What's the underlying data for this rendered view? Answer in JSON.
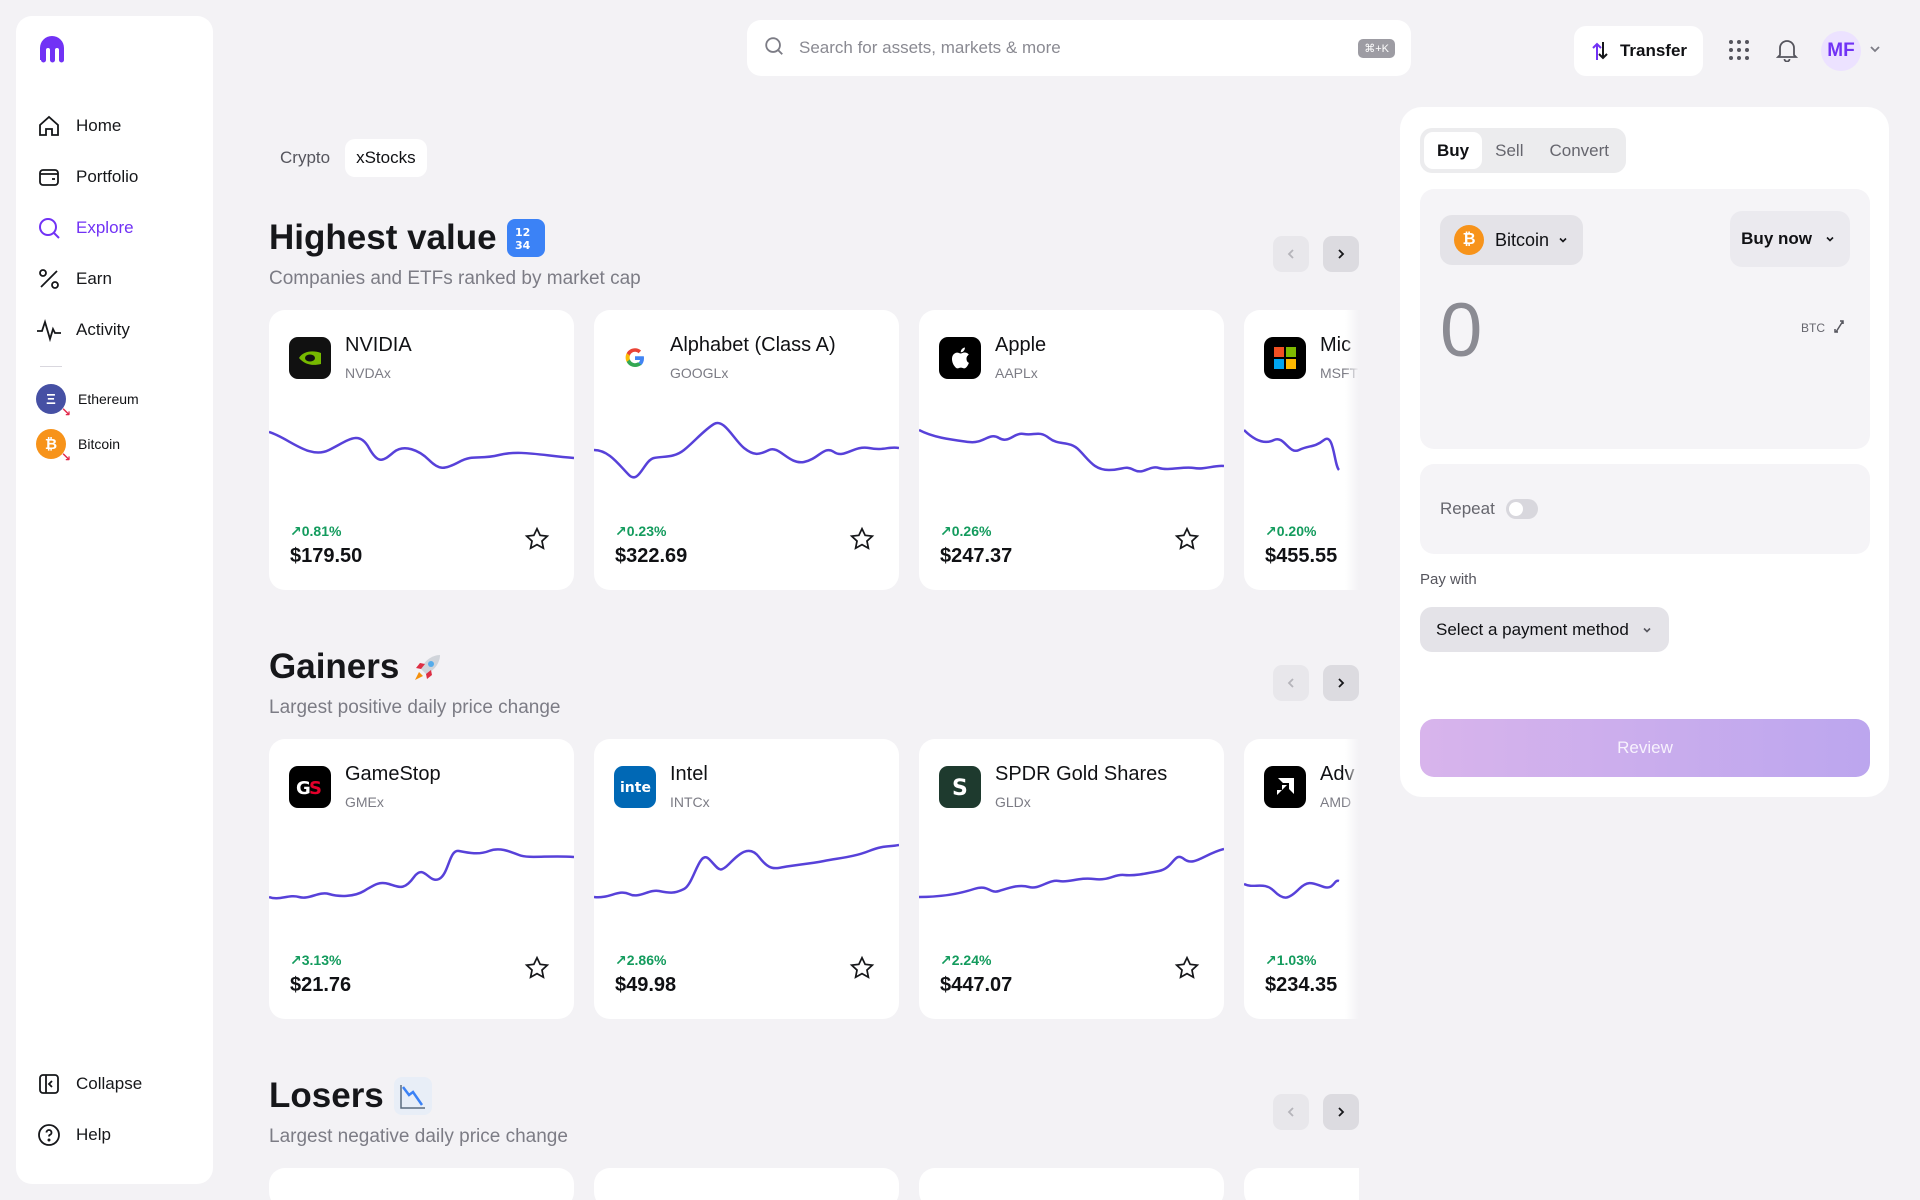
{
  "sidebar": {
    "nav": [
      {
        "label": "Home",
        "icon": "home-icon"
      },
      {
        "label": "Portfolio",
        "icon": "wallet-icon"
      },
      {
        "label": "Explore",
        "icon": "search-icon"
      },
      {
        "label": "Earn",
        "icon": "percent-icon"
      },
      {
        "label": "Activity",
        "icon": "activity-icon"
      }
    ],
    "recent": [
      {
        "label": "Ethereum",
        "symbol": "Ξ",
        "color": "#4650a4"
      },
      {
        "label": "Bitcoin",
        "symbol": "₿",
        "color": "#f7931a"
      }
    ],
    "collapse_label": "Collapse",
    "help_label": "Help",
    "accent": "#7132f5"
  },
  "topbar": {
    "search_placeholder": "Search for assets, markets & more",
    "shortcut": "⌘+K",
    "transfer_label": "Transfer",
    "avatar_initials": "MF"
  },
  "tabs": [
    {
      "label": "Crypto",
      "active": false
    },
    {
      "label": "xStocks",
      "active": true
    }
  ],
  "sections": [
    {
      "title": "Highest value",
      "emoji": "1234",
      "subtitle": "Companies and ETFs ranked by market cap",
      "cards": [
        {
          "name": "NVIDIA",
          "ticker": "NVDAx",
          "change": "0.81%",
          "price": "$179.50",
          "logo": "nvidia-logo"
        },
        {
          "name": "Alphabet (Class A)",
          "ticker": "GOOGLx",
          "change": "0.23%",
          "price": "$322.69",
          "logo": "google-logo"
        },
        {
          "name": "Apple",
          "ticker": "AAPLx",
          "change": "0.26%",
          "price": "$247.37",
          "logo": "apple-logo"
        },
        {
          "name": "Mic",
          "ticker": "MSFT",
          "change": "0.20%",
          "price": "$455.55",
          "logo": "microsoft-logo"
        }
      ]
    },
    {
      "title": "Gainers",
      "emoji": "🚀",
      "subtitle": "Largest positive daily price change",
      "cards": [
        {
          "name": "GameStop",
          "ticker": "GMEx",
          "change": "3.13%",
          "price": "$21.76",
          "logo": "gamestop-logo"
        },
        {
          "name": "Intel",
          "ticker": "INTCx",
          "change": "2.86%",
          "price": "$49.98",
          "logo": "intel-logo"
        },
        {
          "name": "SPDR Gold Shares",
          "ticker": "GLDx",
          "change": "2.24%",
          "price": "$447.07",
          "logo": "spdr-logo"
        },
        {
          "name": "Adv",
          "ticker": "AMD",
          "change": "1.03%",
          "price": "$234.35",
          "logo": "amd-logo"
        }
      ]
    },
    {
      "title": "Losers",
      "emoji": "📉",
      "subtitle": "Largest negative daily price change",
      "cards": []
    }
  ],
  "trade": {
    "tabs": [
      {
        "label": "Buy",
        "active": true
      },
      {
        "label": "Sell",
        "active": false
      },
      {
        "label": "Convert",
        "active": false
      }
    ],
    "asset": "Bitcoin",
    "order_type": "Buy now",
    "amount": "0",
    "unit": "BTC",
    "repeat_label": "Repeat",
    "pay_with_label": "Pay with",
    "payment_placeholder": "Select a payment method",
    "review_label": "Review"
  }
}
